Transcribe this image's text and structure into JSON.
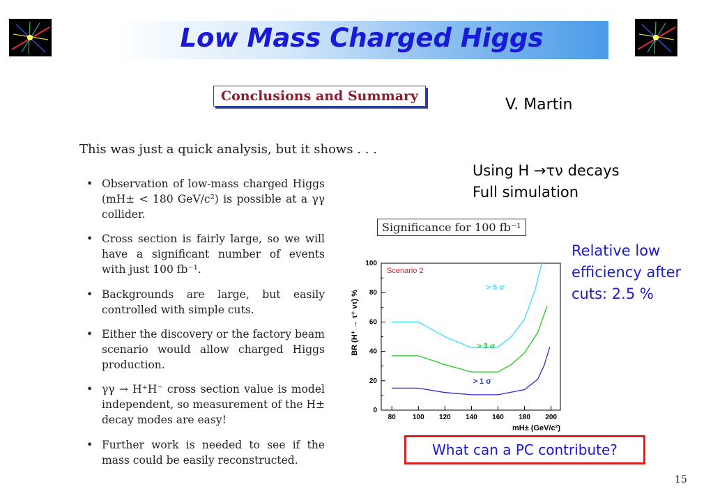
{
  "slide": {
    "title": "Low Mass Charged Higgs",
    "page_number": "15",
    "author": "V. Martin",
    "method_lines": [
      "Using H →τν decays",
      "Full simulation"
    ],
    "efficiency_lines": [
      "Relative low",
      "efficiency after",
      "cuts: 2.5 %"
    ],
    "question": "What can a PC contribute?",
    "colors": {
      "title_blue": "#1a1ad6",
      "box_border": "#2a3da0",
      "box_title": "#8a1f2e",
      "question_border": "#e02020"
    }
  },
  "paper": {
    "section_title": "Conclusions and Summary",
    "intro": "This was just a quick analysis, but it shows . . .",
    "bullets": [
      "Observation of low-mass charged Higgs (mH± < 180 GeV/c²) is possible at a γγ collider.",
      "Cross section is fairly large, so we will have a significant number of events with just 100 fb⁻¹.",
      "Backgrounds are large, but easily controlled with simple cuts.",
      "Either the discovery or the factory beam scenario would allow charged Higgs production.",
      "γγ → H⁺H⁻ cross section value is model independent, so measurement of the H± decay modes are easy!",
      "Further work is needed to see if the mass could be easily reconstructed."
    ]
  },
  "chart_data": {
    "type": "line",
    "title": "Significance for 100 fb⁻¹",
    "annotation": "Scenario 2",
    "xlabel": "mH± (GeV/c²)",
    "ylabel": "BR (H⁺ → τ⁺ ντ) %",
    "xlim": [
      72,
      207
    ],
    "ylim": [
      0,
      100
    ],
    "x_ticks": [
      80,
      100,
      120,
      140,
      160,
      180,
      200
    ],
    "y_ticks": [
      0,
      20,
      40,
      60,
      80,
      100
    ],
    "grid": false,
    "series": [
      {
        "name": "> 5 σ",
        "color": "#33e0ff",
        "x": [
          80,
          100,
          120,
          140,
          160,
          170,
          180,
          188,
          193
        ],
        "y": [
          60,
          60,
          50,
          42.5,
          43,
          50,
          62,
          82,
          100
        ]
      },
      {
        "name": "> 3 σ",
        "color": "#22c922",
        "x": [
          80,
          100,
          120,
          140,
          160,
          170,
          180,
          190,
          197
        ],
        "y": [
          37,
          37,
          31,
          26,
          26,
          31,
          39,
          53,
          71
        ]
      },
      {
        "name": "> 1 σ",
        "color": "#2a2ae0",
        "x": [
          80,
          100,
          120,
          140,
          160,
          180,
          190,
          195,
          199
        ],
        "y": [
          15,
          15,
          12,
          10.5,
          10.5,
          14,
          21,
          31,
          43
        ]
      }
    ]
  }
}
